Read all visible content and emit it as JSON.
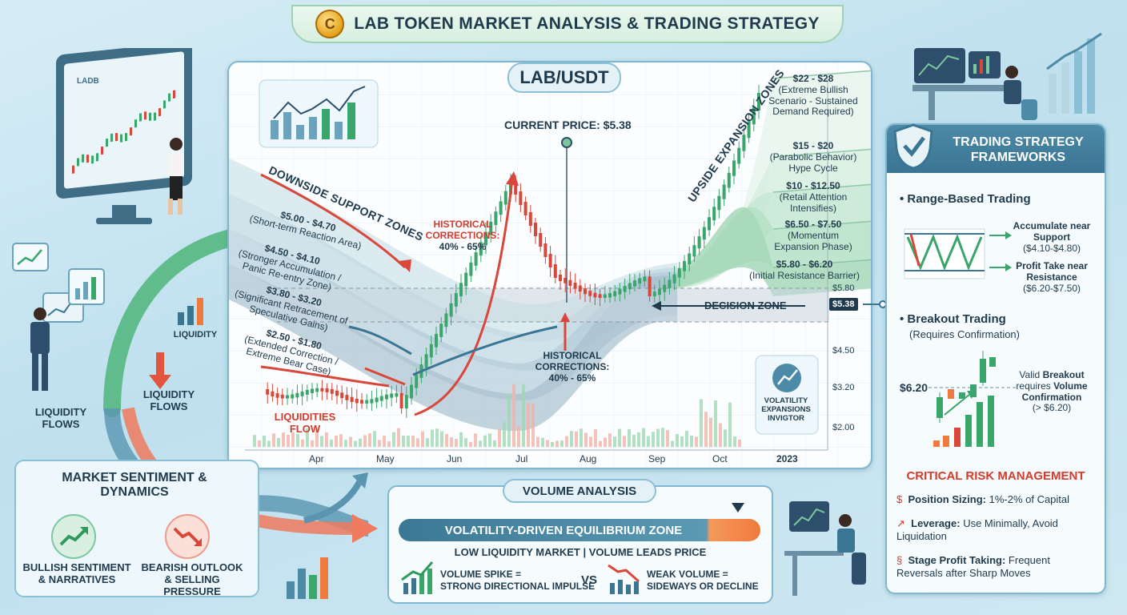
{
  "title": "LAB TOKEN MARKET ANALYSIS & TRADING STRATEGY",
  "coin_glyph": "C",
  "pair": "LAB/USDT",
  "current_price_label": "CURRENT PRICE: $5.38",
  "price_tag": "$5.38",
  "decision_zone": "DECISION ZONE",
  "downside_title": "DOWNSIDE SUPPORT ZONES",
  "upside_title": "UPSIDE EXPANSION ZONES",
  "downside_zones": [
    {
      "range": "$5.00 - $4.70",
      "desc": "(Short-term Reaction Area)"
    },
    {
      "range": "$4.50 - $4.10",
      "desc": "(Stronger Accumulation / Panic Re-entry Zone)"
    },
    {
      "range": "$3.80 - $3.20",
      "desc": "(Significant Retracement of Speculative Gains)"
    },
    {
      "range": "$2.50 - $1.80",
      "desc": "(Extended Correction / Extreme Bear Case)"
    }
  ],
  "upside_zones": [
    {
      "range": "$22 - $28",
      "desc": "(Extreme Bullish Scenario - Sustained Demand Required)"
    },
    {
      "range": "$15 - $20",
      "desc": "(Parabolic Behavior) Hype Cycle"
    },
    {
      "range": "$10 - $12.50",
      "desc": "(Retail Attention Intensifies)"
    },
    {
      "range": "$6.50 - $7.50",
      "desc": "(Momentum Expansion Phase)"
    },
    {
      "range": "$5.80 - $6.20",
      "desc": "(Initial Resistance Barrier)"
    }
  ],
  "historical_corrections_1": "HISTORICAL CORRECTIONS:",
  "historical_corrections_1b": "40% - 65%",
  "historical_corrections_2": "HISTORICAL CORRECTIONS:",
  "historical_corrections_2b": "40% - 65%",
  "liquidities_flow": "LIQUIDITIES FLOW",
  "volatility_badge": "VOLATILITY EXPANSIONS INVIGTOR",
  "y_ticks": [
    "$5.80",
    "$4.50",
    "$3.20",
    "$2.00"
  ],
  "x_ticks": [
    "Apr",
    "May",
    "Jun",
    "Jul",
    "Aug",
    "Sep",
    "Oct",
    "2023"
  ],
  "monitor_label": "LADB",
  "left": {
    "liquidity_flows_1": "LIQUIDITY FLOWS",
    "liquidity_flows_2": "LIQUIDITY FLOWS",
    "liquidity": "LIQUIDITY"
  },
  "sentiment": {
    "title": "MARKET SENTIMENT & DYNAMICS",
    "bullish": "BULLISH SENTIMENT & NARRATIVES",
    "bearish": "BEARISH OUTLOOK & SELLING PRESSURE"
  },
  "strategy": {
    "title": "TRADING STRATEGY FRAMEWORKS",
    "range_title": "Range-Based Trading",
    "accumulate": "Accumulate near",
    "support": "Support",
    "support_range": "($4.10-$4.80)",
    "profit_take": "Profit Take near",
    "resistance": "Resistance",
    "resistance_range": "($6.20-$7.50)",
    "breakout_title": "Breakout Trading",
    "breakout_sub": "(Requires Confirmation)",
    "breakout_level": "$6.20",
    "valid": "Valid",
    "breakout_word": "Breakout",
    "requires": "requires",
    "volume_word": "Volume",
    "confirmation": "Confirmation",
    "confirm_level": "(> $6.20)"
  },
  "risk": {
    "title": "CRITICAL RISK MANAGEMENT",
    "items": [
      {
        "key": "Position Sizing:",
        "val": "1%-2% of Capital"
      },
      {
        "key": "Leverage:",
        "val": "Use Minimally, Avoid Liquidation"
      },
      {
        "key": "Stage Profit Taking:",
        "val": "Frequent Reversals after Sharp Moves"
      }
    ]
  },
  "volume": {
    "title": "VOLUME ANALYSIS",
    "bar": "VOLATILITY-DRIVEN EQUILIBRIUM ZONE",
    "sub": "LOW LIQUIDITY MARKET | VOLUME LEADS PRICE",
    "spike": "VOLUME SPIKE =",
    "spike2": "STRONG DIRECTIONAL IMPULSE",
    "vs": "VS",
    "weak": "WEAK VOLUME =",
    "weak2": "SIDEWAYS OR DECLINE"
  },
  "colors": {
    "bull": "#3aa66b",
    "bear": "#d9473a",
    "accent": "#3a7593",
    "zone_up": "#bfe6cf",
    "zone_down": "#b9cfd9"
  }
}
